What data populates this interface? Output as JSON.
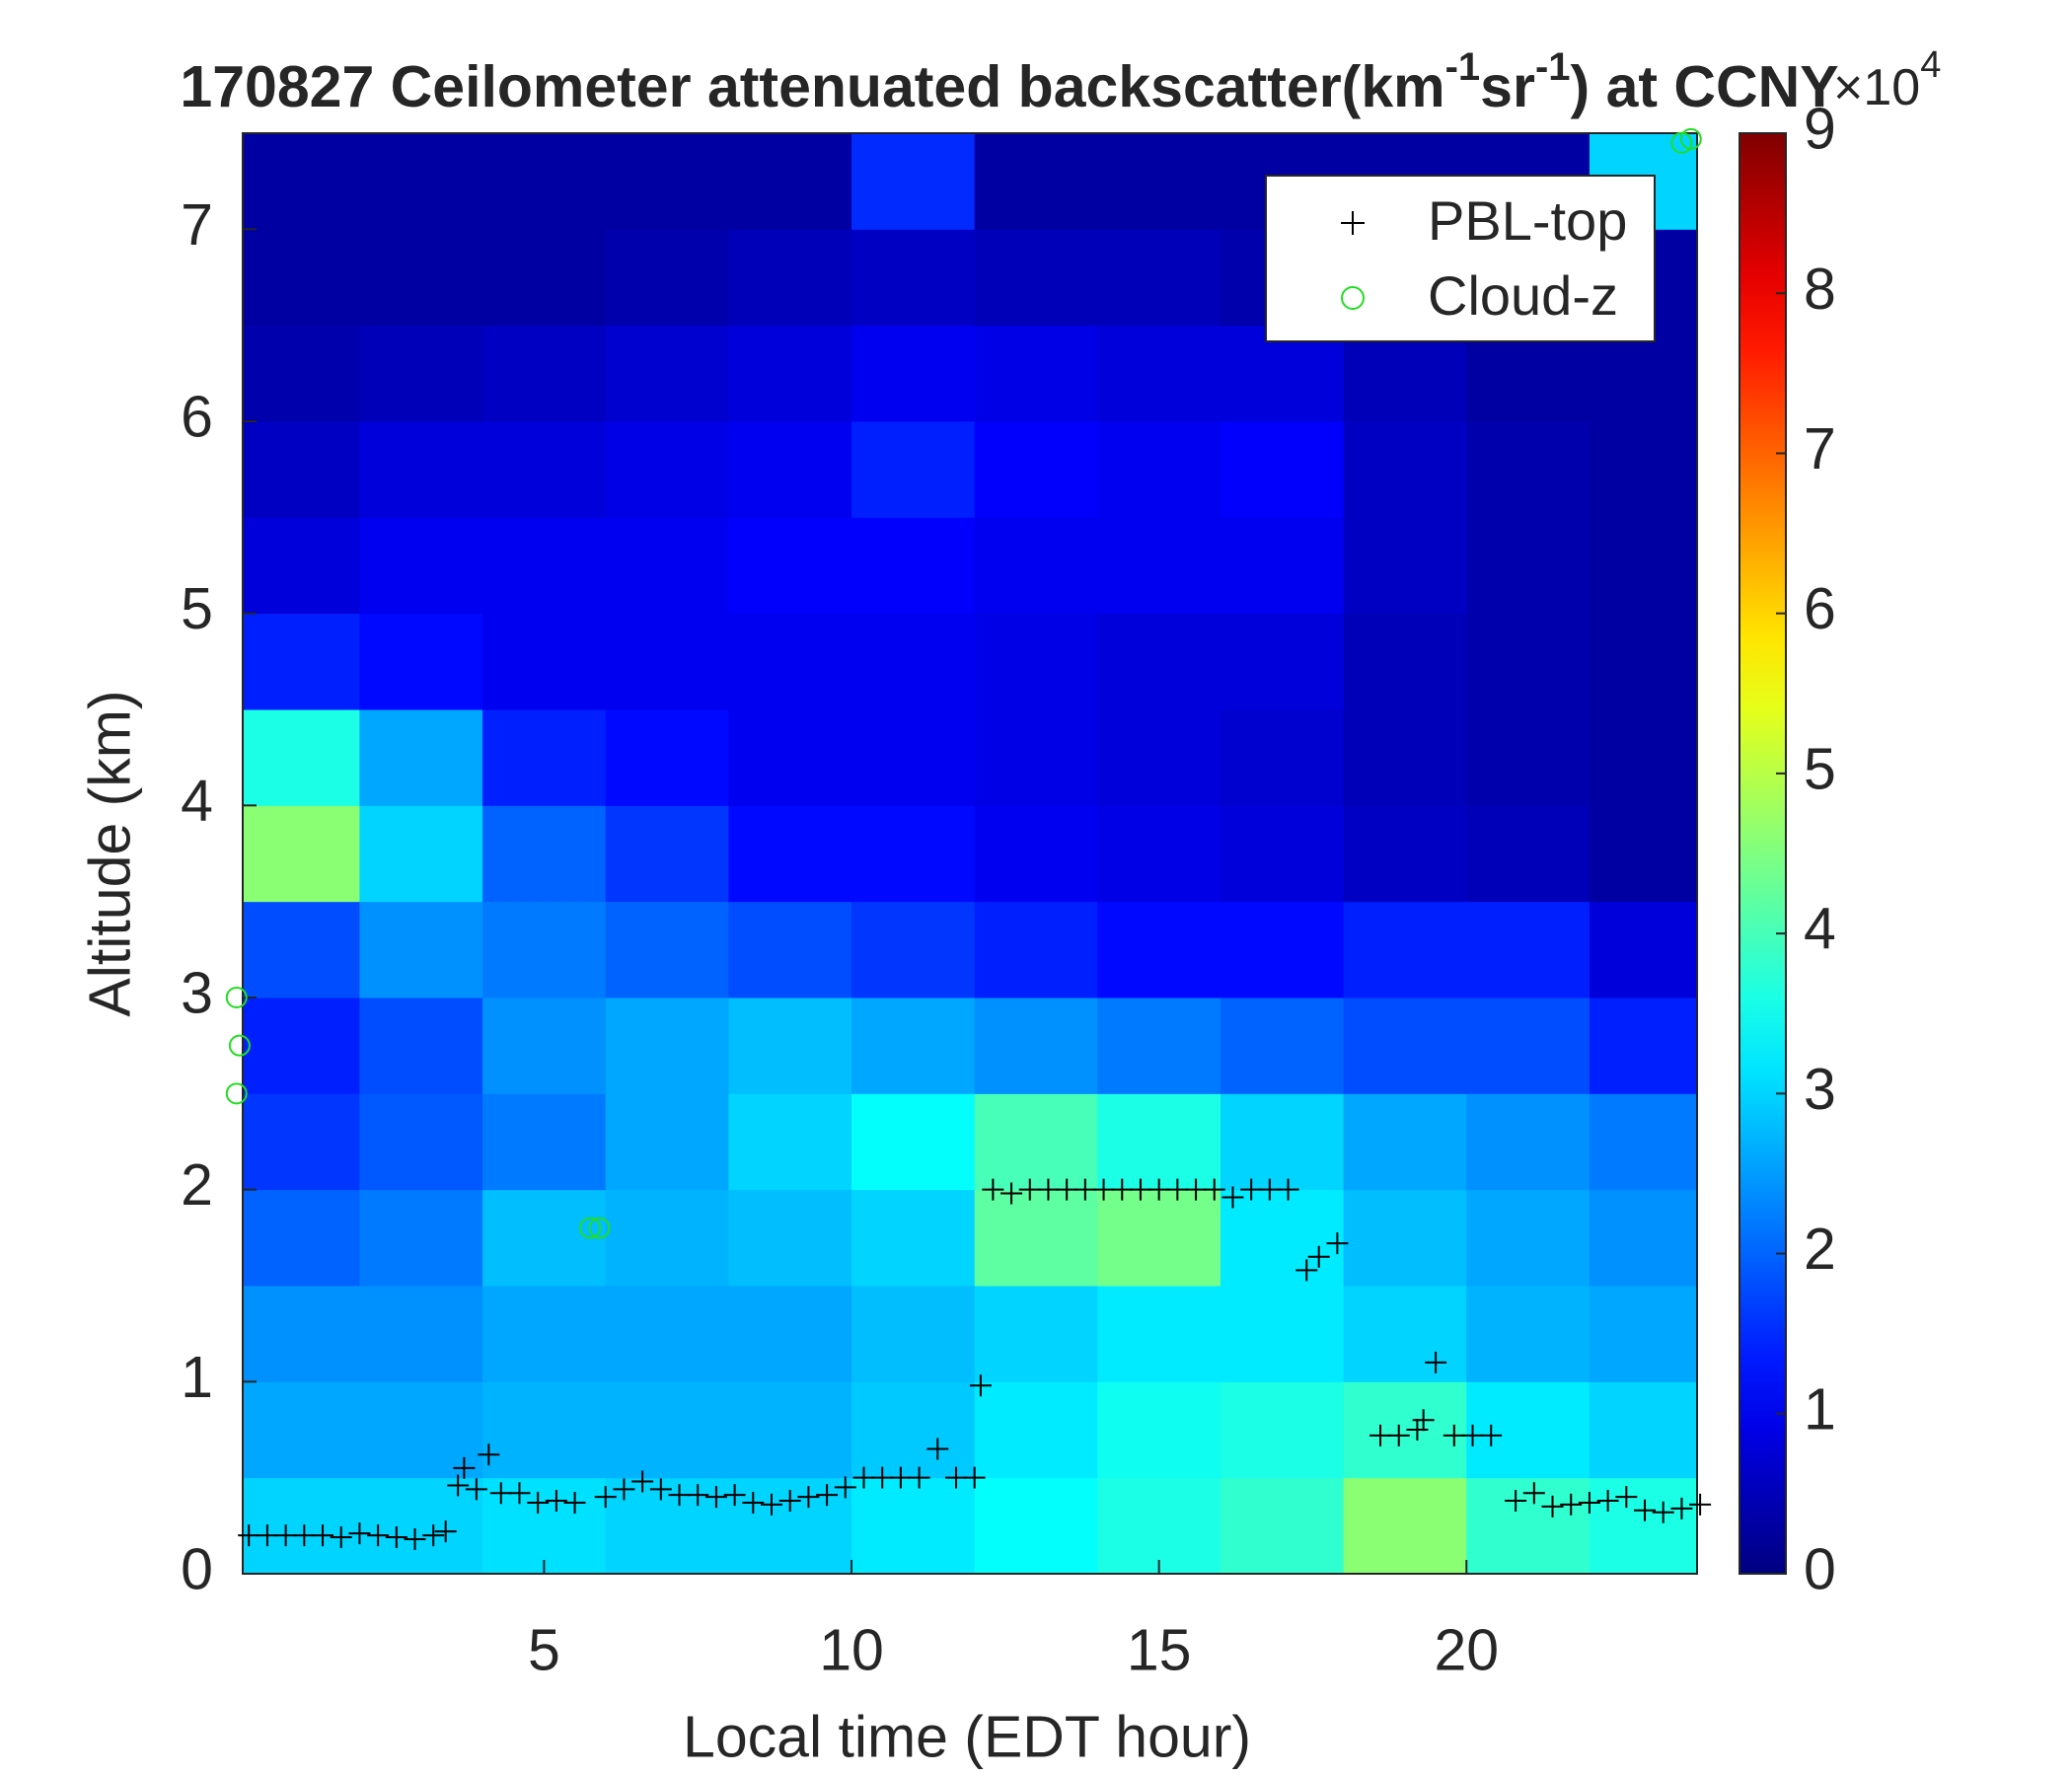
{
  "chart_data": {
    "type": "heatmap",
    "title": [
      "170827 Ceilometer attenuated backscatter(km",
      "-1",
      "sr",
      "-1",
      ") at CCNY"
    ],
    "x_label": "Local time (EDT hour)",
    "y_label": "Altitude (km)",
    "xlim": [
      0.1,
      23.75
    ],
    "ylim": [
      0,
      7.5
    ],
    "xticks": [
      5,
      10,
      15,
      20
    ],
    "yticks": [
      0,
      1,
      2,
      3,
      4,
      5,
      6,
      7
    ],
    "colormap": "jet",
    "clim": [
      0,
      9
    ],
    "cticks": [
      0,
      1,
      2,
      3,
      4,
      5,
      6,
      7,
      8,
      9
    ],
    "colorbar_exponent": [
      "×10",
      "4"
    ],
    "x_centers": [
      1,
      3,
      5,
      7,
      9,
      11,
      13,
      15,
      17,
      19,
      21,
      23
    ],
    "y_centers": [
      0.25,
      0.75,
      1.25,
      1.75,
      2.25,
      2.75,
      3.25,
      3.75,
      4.25,
      4.75,
      5.25,
      5.75,
      6.25,
      6.75,
      7.25
    ],
    "z": [
      [
        3.0,
        3.0,
        3.1,
        3.0,
        3.0,
        3.2,
        3.4,
        3.6,
        3.8,
        4.6,
        3.8,
        3.6
      ],
      [
        2.6,
        2.6,
        2.7,
        2.7,
        2.7,
        2.9,
        3.2,
        3.5,
        3.6,
        3.8,
        3.2,
        3.0
      ],
      [
        2.4,
        2.4,
        2.6,
        2.6,
        2.6,
        2.8,
        3.0,
        3.2,
        3.2,
        3.0,
        2.7,
        2.6
      ],
      [
        2.0,
        2.2,
        2.8,
        2.7,
        2.8,
        3.0,
        4.2,
        4.4,
        3.2,
        2.8,
        2.6,
        2.4
      ],
      [
        1.6,
        1.9,
        2.2,
        2.6,
        3.0,
        3.4,
        4.0,
        3.6,
        3.0,
        2.6,
        2.4,
        2.2
      ],
      [
        1.4,
        1.8,
        2.4,
        2.6,
        2.8,
        2.6,
        2.4,
        2.2,
        2.0,
        1.8,
        1.8,
        1.4
      ],
      [
        1.8,
        2.4,
        2.2,
        2.0,
        1.8,
        1.6,
        1.4,
        1.2,
        1.2,
        1.4,
        1.4,
        0.8
      ],
      [
        4.6,
        3.0,
        2.0,
        1.6,
        1.2,
        1.2,
        1.0,
        0.9,
        0.8,
        0.6,
        0.5,
        0.3
      ],
      [
        3.6,
        2.6,
        1.4,
        1.2,
        1.0,
        1.0,
        0.9,
        0.8,
        0.7,
        0.5,
        0.4,
        0.3
      ],
      [
        1.4,
        1.2,
        1.0,
        1.0,
        1.0,
        1.0,
        0.9,
        0.8,
        0.8,
        0.5,
        0.4,
        0.3
      ],
      [
        0.8,
        1.0,
        1.0,
        1.0,
        1.1,
        1.1,
        1.0,
        1.0,
        1.0,
        0.6,
        0.4,
        0.3
      ],
      [
        0.6,
        0.8,
        0.8,
        0.9,
        1.0,
        1.4,
        1.1,
        1.0,
        1.1,
        0.6,
        0.4,
        0.3
      ],
      [
        0.4,
        0.5,
        0.6,
        0.7,
        0.8,
        1.0,
        0.9,
        0.8,
        0.8,
        0.5,
        0.3,
        0.3
      ],
      [
        0.3,
        0.3,
        0.3,
        0.4,
        0.5,
        0.6,
        0.5,
        0.5,
        0.4,
        0.3,
        0.3,
        0.3
      ],
      [
        0.3,
        0.3,
        0.3,
        0.3,
        0.3,
        1.5,
        0.3,
        0.3,
        0.3,
        0.3,
        0.3,
        3.0
      ]
    ],
    "legend": "upper right",
    "series": [
      {
        "name": "PBL-top",
        "color": "#000000",
        "marker": "+",
        "x": [
          0.2,
          0.5,
          0.8,
          1.1,
          1.4,
          1.7,
          2.0,
          2.3,
          2.6,
          2.9,
          3.2,
          3.4,
          3.6,
          3.7,
          3.9,
          4.1,
          4.3,
          4.6,
          4.9,
          5.2,
          5.5,
          6.0,
          6.3,
          6.6,
          6.9,
          7.2,
          7.5,
          7.8,
          8.1,
          8.4,
          8.7,
          9.0,
          9.3,
          9.6,
          9.9,
          10.2,
          10.5,
          10.8,
          11.1,
          11.4,
          11.7,
          12.0,
          12.1,
          12.3,
          12.6,
          12.9,
          13.2,
          13.5,
          13.8,
          14.1,
          14.4,
          14.7,
          15.0,
          15.3,
          15.6,
          15.9,
          16.2,
          16.5,
          16.8,
          17.1,
          17.4,
          17.6,
          17.9,
          18.6,
          18.9,
          19.2,
          19.3,
          19.5,
          19.8,
          20.1,
          20.4,
          20.8,
          21.1,
          21.4,
          21.7,
          22.0,
          22.3,
          22.6,
          22.9,
          23.2,
          23.5,
          23.8
        ],
        "y": [
          0.2,
          0.2,
          0.2,
          0.2,
          0.2,
          0.19,
          0.21,
          0.2,
          0.19,
          0.18,
          0.2,
          0.22,
          0.46,
          0.55,
          0.44,
          0.62,
          0.42,
          0.42,
          0.37,
          0.38,
          0.37,
          0.4,
          0.44,
          0.48,
          0.44,
          0.41,
          0.41,
          0.4,
          0.41,
          0.37,
          0.36,
          0.38,
          0.4,
          0.41,
          0.45,
          0.5,
          0.5,
          0.5,
          0.5,
          0.65,
          0.5,
          0.5,
          0.98,
          2.0,
          1.98,
          2.0,
          2.0,
          2.0,
          2.0,
          2.0,
          2.0,
          2.0,
          2.0,
          2.0,
          2.0,
          2.0,
          1.96,
          2.0,
          2.0,
          2.0,
          1.58,
          1.65,
          1.72,
          0.72,
          0.72,
          0.75,
          0.8,
          1.1,
          0.72,
          0.72,
          0.72,
          0.38,
          0.42,
          0.35,
          0.36,
          0.37,
          0.38,
          0.4,
          0.33,
          0.32,
          0.34,
          0.36
        ]
      },
      {
        "name": "Cloud-z",
        "color": "#22dd22",
        "marker": "o",
        "x": [
          0.0,
          0.05,
          0.0,
          5.75,
          5.9,
          23.5,
          23.65
        ],
        "y": [
          3.0,
          2.75,
          2.5,
          1.8,
          1.8,
          7.45,
          7.47
        ]
      }
    ]
  }
}
